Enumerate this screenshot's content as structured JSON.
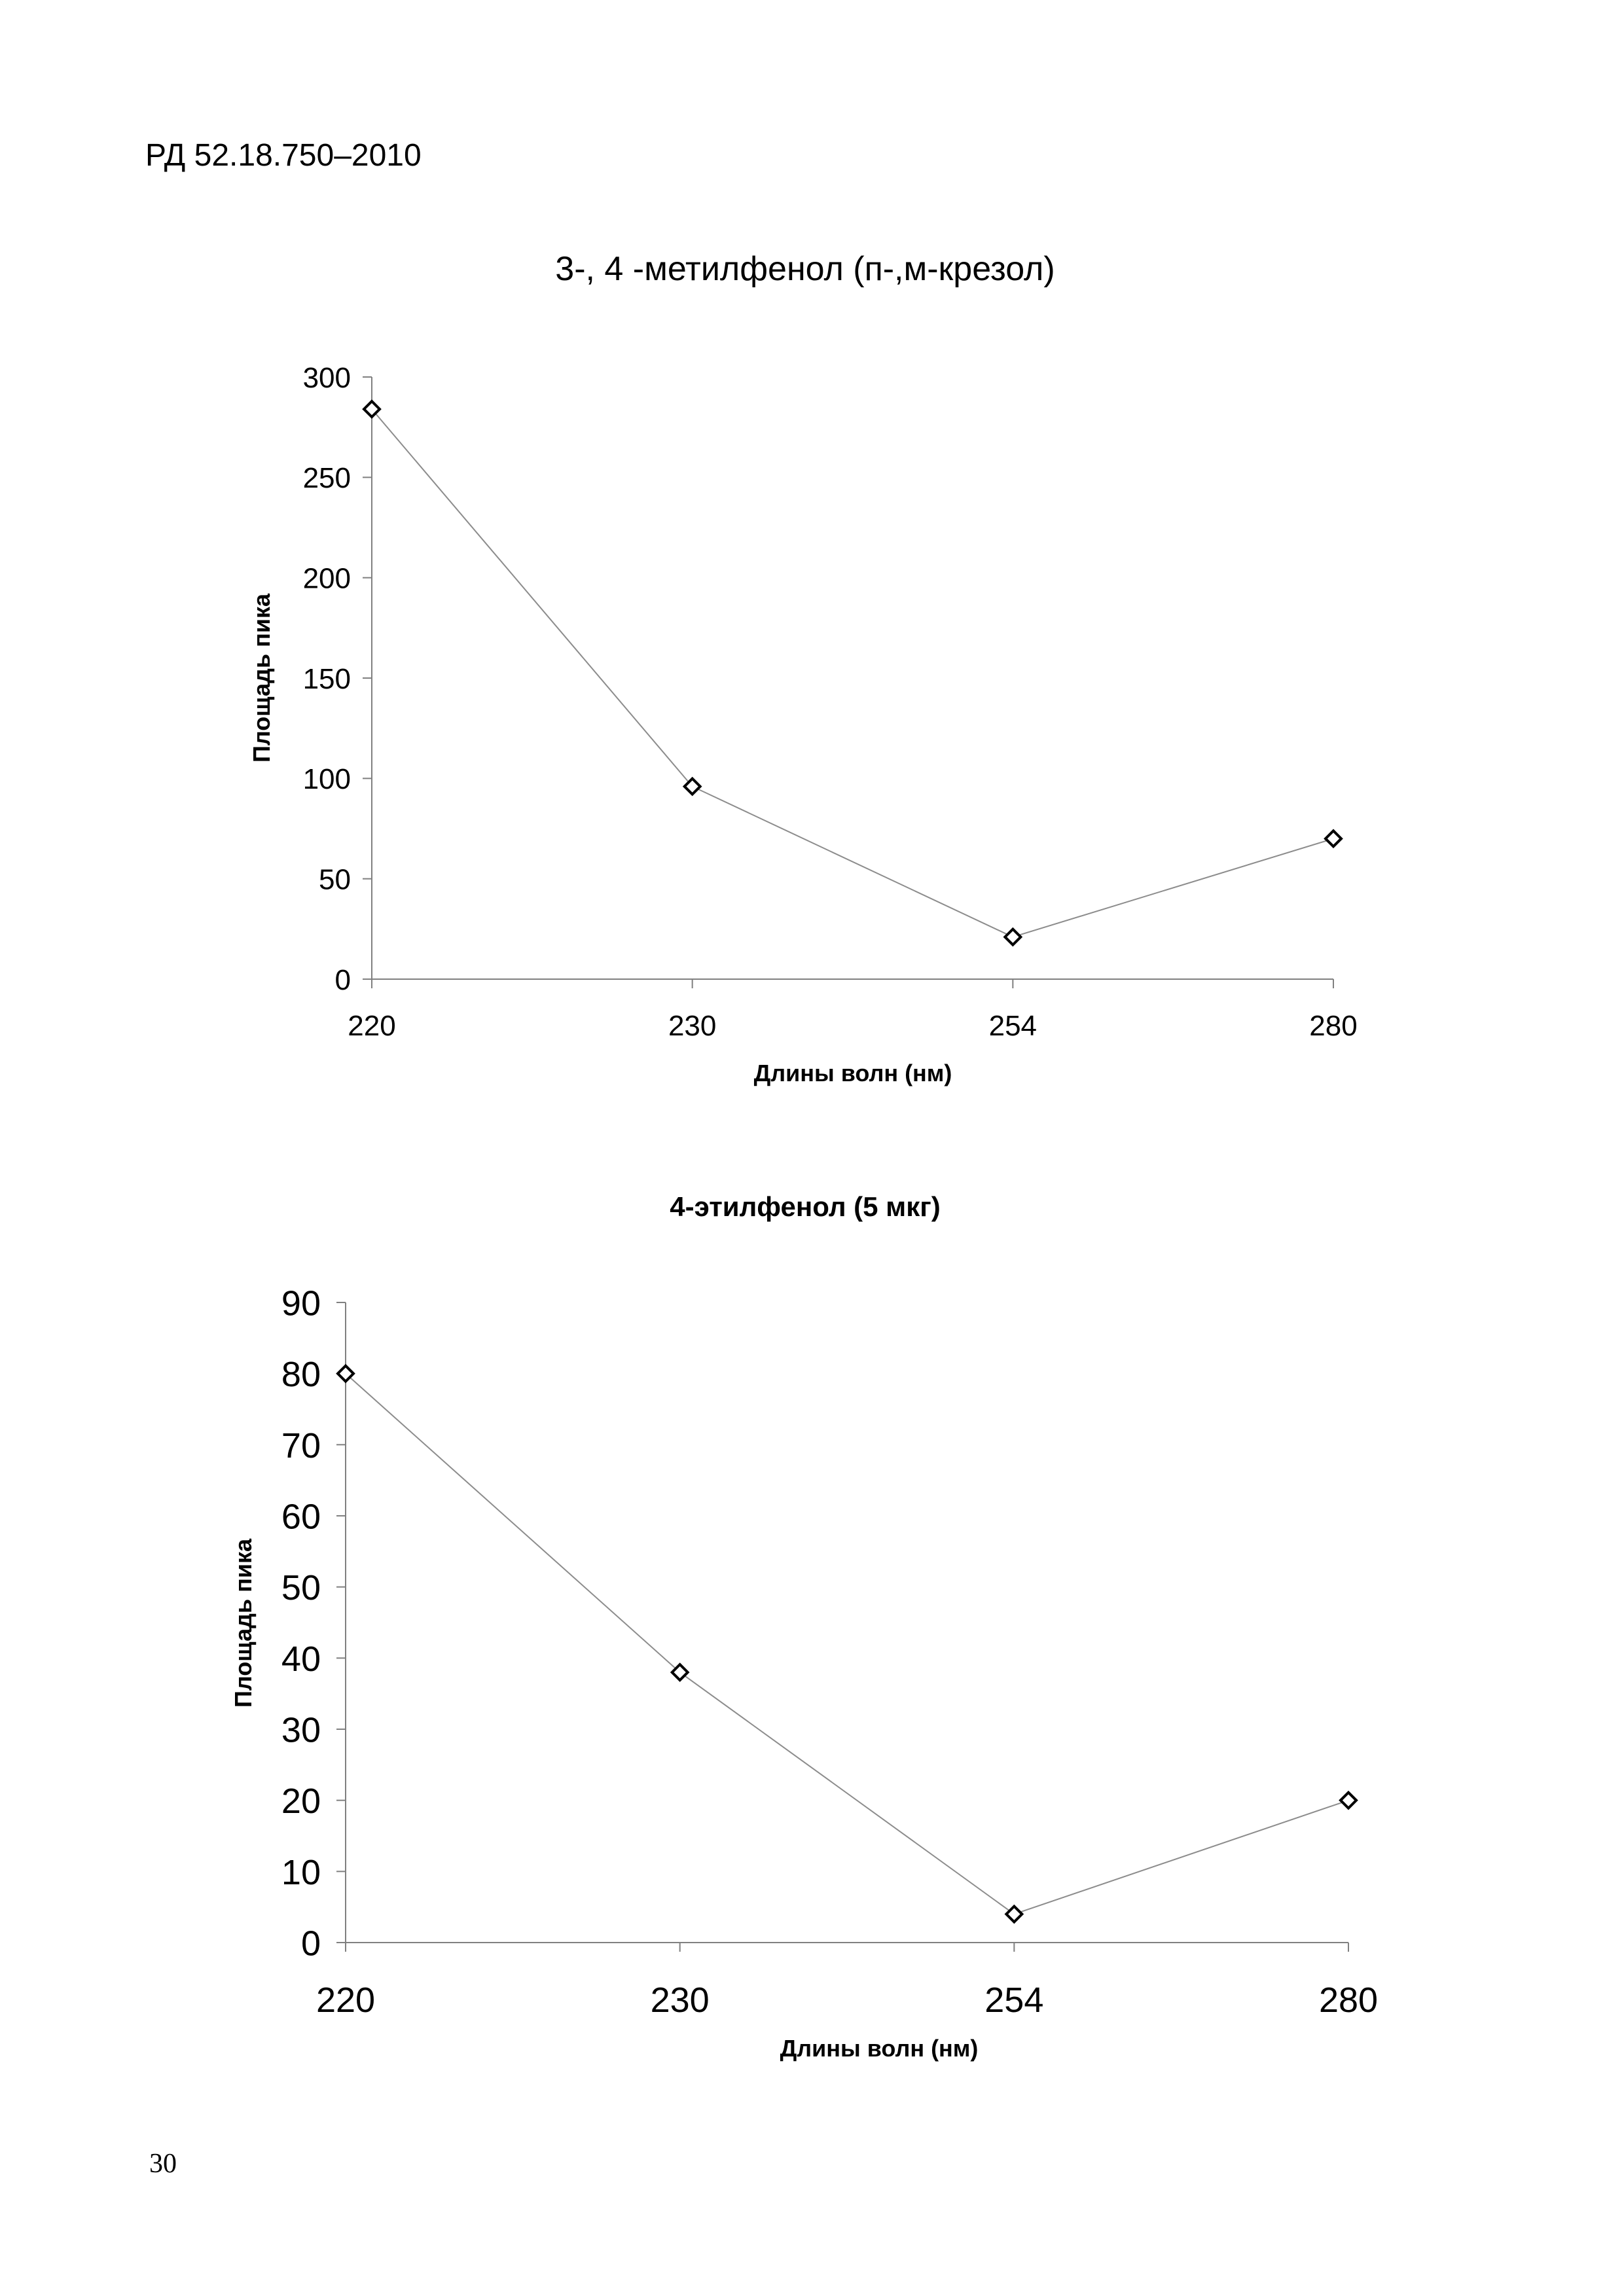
{
  "page": {
    "document_code": "РД 52.18.750–2010",
    "page_number": "30"
  },
  "chart_data": [
    {
      "type": "line",
      "title": "3-, 4 -метилфенол (п-,м-крезол)",
      "xlabel": "Длины волн (нм)",
      "ylabel": "Площадь пика",
      "categories": [
        "220",
        "230",
        "254",
        "280"
      ],
      "values": [
        284,
        96,
        21,
        70
      ],
      "ylim": [
        0,
        300
      ],
      "yticks": [
        0,
        50,
        100,
        150,
        200,
        250,
        300
      ],
      "marker": "diamond",
      "grid": false,
      "legend": false
    },
    {
      "type": "line",
      "title": "4-этилфенол (5 мкг)",
      "xlabel": "Длины волн (нм)",
      "ylabel": "Площадь пика",
      "categories": [
        "220",
        "230",
        "254",
        "280"
      ],
      "values": [
        80,
        38,
        4,
        20
      ],
      "ylim": [
        0,
        90
      ],
      "yticks": [
        0,
        10,
        20,
        30,
        40,
        50,
        60,
        70,
        80,
        90
      ],
      "marker": "diamond",
      "grid": false,
      "legend": false
    }
  ]
}
